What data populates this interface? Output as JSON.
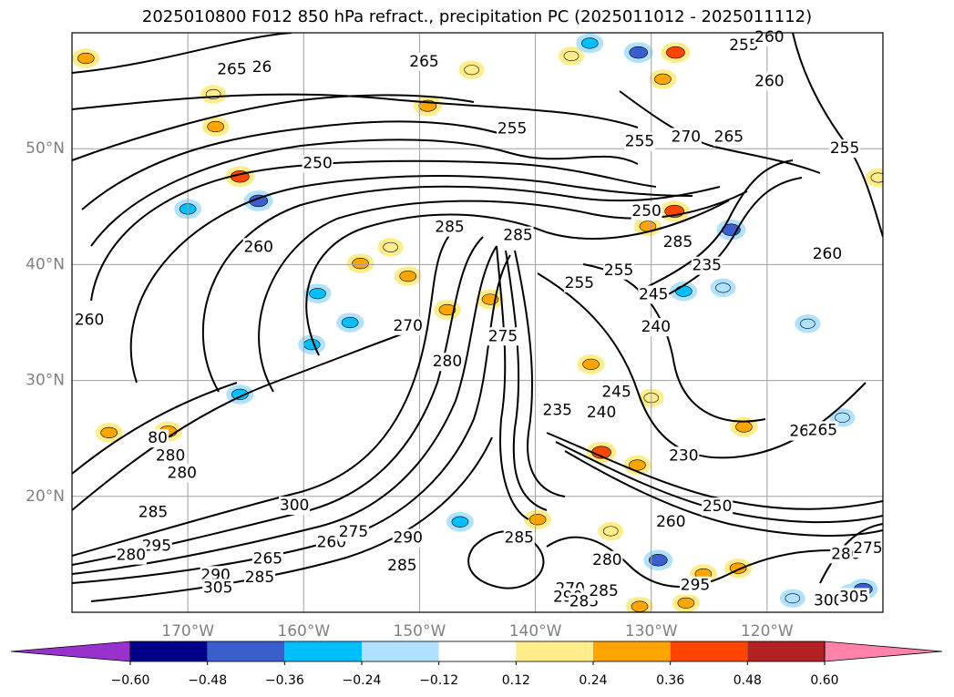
{
  "title": "2025010800 F012 850 hPa refract., precipitation PC (2025011012 - 2025011112)",
  "chart_data": {
    "type": "heatmap",
    "title": "2025010800 F012 850 hPa refract., precipitation PC (2025011012 - 2025011112)",
    "xlabel": "",
    "ylabel": "",
    "xlim": [
      -180,
      -110
    ],
    "ylim": [
      10,
      60
    ],
    "lon_ticks": [
      {
        "value": -170,
        "label": "170°W"
      },
      {
        "value": -160,
        "label": "160°W"
      },
      {
        "value": -150,
        "label": "150°W"
      },
      {
        "value": -140,
        "label": "140°W"
      },
      {
        "value": -130,
        "label": "130°W"
      },
      {
        "value": -120,
        "label": "120°W"
      }
    ],
    "lat_ticks": [
      {
        "value": 20,
        "label": "20°N"
      },
      {
        "value": 30,
        "label": "30°N"
      },
      {
        "value": 40,
        "label": "40°N"
      },
      {
        "value": 50,
        "label": "50°N"
      }
    ],
    "grid": true,
    "colorbar": {
      "orientation": "horizontal",
      "extend": "both",
      "bounds": [
        -0.72,
        -0.6,
        -0.48,
        -0.36,
        -0.24,
        -0.12,
        0.12,
        0.24,
        0.36,
        0.48,
        0.6,
        0.72
      ],
      "tick_values": [
        -0.6,
        -0.48,
        -0.36,
        -0.24,
        -0.12,
        0.12,
        0.24,
        0.36,
        0.48,
        0.6
      ],
      "tick_labels": [
        "−0.60",
        "−0.48",
        "−0.36",
        "−0.24",
        "−0.12",
        "0.12",
        "0.24",
        "0.36",
        "0.48",
        "0.60"
      ],
      "colors": [
        "#9932cc",
        "#00008b",
        "#3a5fcd",
        "#00bfff",
        "#b0e2ff",
        "#ffffff",
        "#ffec8b",
        "#ffa500",
        "#ff4500",
        "#b22222",
        "#ff82ab"
      ]
    },
    "contour_labels": [
      {
        "lon": -166.2,
        "lat": 56.8,
        "text": "265"
      },
      {
        "lon": -163.6,
        "lat": 57.0,
        "text": "26"
      },
      {
        "lon": -149.6,
        "lat": 57.5,
        "text": "265"
      },
      {
        "lon": -142.0,
        "lat": 51.7,
        "text": "255"
      },
      {
        "lon": -158.8,
        "lat": 48.7,
        "text": "250"
      },
      {
        "lon": -163.9,
        "lat": 41.5,
        "text": "260"
      },
      {
        "lon": -178.5,
        "lat": 35.2,
        "text": "260"
      },
      {
        "lon": -131.0,
        "lat": 50.6,
        "text": "255"
      },
      {
        "lon": -122.0,
        "lat": 58.9,
        "text": "255"
      },
      {
        "lon": -119.8,
        "lat": 59.6,
        "text": "260"
      },
      {
        "lon": -119.8,
        "lat": 55.8,
        "text": "260"
      },
      {
        "lon": -123.3,
        "lat": 51.0,
        "text": "265"
      },
      {
        "lon": -127.0,
        "lat": 51.0,
        "text": "270"
      },
      {
        "lon": -113.3,
        "lat": 50.0,
        "text": "255"
      },
      {
        "lon": -114.8,
        "lat": 40.9,
        "text": "260"
      },
      {
        "lon": -130.4,
        "lat": 44.6,
        "text": "250"
      },
      {
        "lon": -147.4,
        "lat": 43.2,
        "text": "285"
      },
      {
        "lon": -141.5,
        "lat": 42.5,
        "text": "285"
      },
      {
        "lon": -127.7,
        "lat": 41.9,
        "text": "285"
      },
      {
        "lon": -132.8,
        "lat": 39.5,
        "text": "255"
      },
      {
        "lon": -136.2,
        "lat": 38.4,
        "text": "255"
      },
      {
        "lon": -129.8,
        "lat": 37.4,
        "text": "245"
      },
      {
        "lon": -125.2,
        "lat": 39.9,
        "text": "235"
      },
      {
        "lon": -129.6,
        "lat": 34.6,
        "text": "240"
      },
      {
        "lon": -151.0,
        "lat": 34.7,
        "text": "270"
      },
      {
        "lon": -147.6,
        "lat": 31.6,
        "text": "280"
      },
      {
        "lon": -142.8,
        "lat": 33.8,
        "text": "275"
      },
      {
        "lon": -133.0,
        "lat": 29.0,
        "text": "245"
      },
      {
        "lon": -138.1,
        "lat": 27.4,
        "text": "235"
      },
      {
        "lon": -134.3,
        "lat": 27.2,
        "text": "240"
      },
      {
        "lon": -127.2,
        "lat": 23.5,
        "text": "230"
      },
      {
        "lon": -171.5,
        "lat": 23.5,
        "text": "280"
      },
      {
        "lon": -172.6,
        "lat": 25.0,
        "text": "80"
      },
      {
        "lon": -170.5,
        "lat": 22.0,
        "text": "280"
      },
      {
        "lon": -173.0,
        "lat": 18.6,
        "text": "285"
      },
      {
        "lon": -160.8,
        "lat": 19.2,
        "text": "300"
      },
      {
        "lon": -172.7,
        "lat": 15.7,
        "text": "295"
      },
      {
        "lon": -174.9,
        "lat": 14.9,
        "text": "280"
      },
      {
        "lon": -163.1,
        "lat": 14.6,
        "text": "265"
      },
      {
        "lon": -157.6,
        "lat": 16.0,
        "text": "260"
      },
      {
        "lon": -155.7,
        "lat": 16.9,
        "text": "275"
      },
      {
        "lon": -151.0,
        "lat": 16.4,
        "text": "290"
      },
      {
        "lon": -151.5,
        "lat": 14.0,
        "text": "285"
      },
      {
        "lon": -167.6,
        "lat": 13.2,
        "text": "290"
      },
      {
        "lon": -167.4,
        "lat": 12.1,
        "text": "305"
      },
      {
        "lon": -163.8,
        "lat": 13.0,
        "text": "285"
      },
      {
        "lon": -141.4,
        "lat": 16.4,
        "text": "285"
      },
      {
        "lon": -137.0,
        "lat": 12.0,
        "text": "270"
      },
      {
        "lon": -133.8,
        "lat": 14.5,
        "text": "280"
      },
      {
        "lon": -137.2,
        "lat": 11.3,
        "text": "290"
      },
      {
        "lon": -135.8,
        "lat": 10.9,
        "text": "285"
      },
      {
        "lon": -134.1,
        "lat": 11.8,
        "text": "285"
      },
      {
        "lon": -128.3,
        "lat": 17.8,
        "text": "260"
      },
      {
        "lon": -124.3,
        "lat": 19.1,
        "text": "250"
      },
      {
        "lon": -126.2,
        "lat": 12.3,
        "text": "295"
      },
      {
        "lon": -116.8,
        "lat": 25.6,
        "text": "260"
      },
      {
        "lon": -115.2,
        "lat": 25.7,
        "text": "265"
      },
      {
        "lon": -113.2,
        "lat": 15.0,
        "text": "280"
      },
      {
        "lon": -111.3,
        "lat": 15.5,
        "text": "275"
      },
      {
        "lon": -114.7,
        "lat": 11.0,
        "text": "300"
      },
      {
        "lon": -112.5,
        "lat": 11.3,
        "text": "305"
      }
    ],
    "precip_patches": [
      {
        "lon": -178.8,
        "lat": 57.8,
        "value": 0.3
      },
      {
        "lon": -167.8,
        "lat": 54.7,
        "value": 0.2
      },
      {
        "lon": -167.6,
        "lat": 51.9,
        "value": 0.3
      },
      {
        "lon": -165.5,
        "lat": 47.6,
        "value": 0.4
      },
      {
        "lon": -163.9,
        "lat": 45.5,
        "value": -0.4
      },
      {
        "lon": -170.0,
        "lat": 44.8,
        "value": -0.3
      },
      {
        "lon": -149.3,
        "lat": 53.7,
        "value": 0.35
      },
      {
        "lon": -145.5,
        "lat": 56.8,
        "value": 0.2
      },
      {
        "lon": -136.9,
        "lat": 58.0,
        "value": 0.2
      },
      {
        "lon": -135.3,
        "lat": 59.1,
        "value": -0.3
      },
      {
        "lon": -131.1,
        "lat": 58.3,
        "value": -0.4
      },
      {
        "lon": -127.9,
        "lat": 58.3,
        "value": 0.4
      },
      {
        "lon": -129.0,
        "lat": 56.0,
        "value": 0.3
      },
      {
        "lon": -128.0,
        "lat": 44.6,
        "value": 0.45
      },
      {
        "lon": -130.3,
        "lat": 43.3,
        "value": 0.3
      },
      {
        "lon": -123.1,
        "lat": 43.0,
        "value": -0.4
      },
      {
        "lon": -155.1,
        "lat": 40.1,
        "value": 0.3
      },
      {
        "lon": -151.0,
        "lat": 39.0,
        "value": 0.3
      },
      {
        "lon": -158.8,
        "lat": 37.5,
        "value": -0.3
      },
      {
        "lon": -156.0,
        "lat": 35.0,
        "value": -0.3
      },
      {
        "lon": -159.3,
        "lat": 33.1,
        "value": -0.3
      },
      {
        "lon": -152.5,
        "lat": 41.5,
        "value": 0.2
      },
      {
        "lon": -147.6,
        "lat": 36.1,
        "value": 0.3
      },
      {
        "lon": -143.9,
        "lat": 37.0,
        "value": 0.3
      },
      {
        "lon": -135.2,
        "lat": 31.4,
        "value": 0.3
      },
      {
        "lon": -134.3,
        "lat": 23.8,
        "value": 0.45
      },
      {
        "lon": -131.2,
        "lat": 22.7,
        "value": 0.3
      },
      {
        "lon": -127.2,
        "lat": 37.7,
        "value": -0.3
      },
      {
        "lon": -123.8,
        "lat": 38.0,
        "value": -0.2
      },
      {
        "lon": -130.0,
        "lat": 28.5,
        "value": 0.2
      },
      {
        "lon": -176.8,
        "lat": 25.5,
        "value": 0.3
      },
      {
        "lon": -171.7,
        "lat": 25.6,
        "value": 0.35
      },
      {
        "lon": -165.5,
        "lat": 28.8,
        "value": -0.3
      },
      {
        "lon": -146.5,
        "lat": 17.8,
        "value": -0.3
      },
      {
        "lon": -139.8,
        "lat": 18.0,
        "value": 0.3
      },
      {
        "lon": -133.5,
        "lat": 17.0,
        "value": 0.2
      },
      {
        "lon": -129.4,
        "lat": 14.5,
        "value": -0.4
      },
      {
        "lon": -125.5,
        "lat": 13.3,
        "value": 0.3
      },
      {
        "lon": -122.5,
        "lat": 13.8,
        "value": 0.3
      },
      {
        "lon": -117.8,
        "lat": 11.2,
        "value": -0.2
      },
      {
        "lon": -112.6,
        "lat": 11.5,
        "value": -0.55
      },
      {
        "lon": -111.7,
        "lat": 12.0,
        "value": -0.4
      },
      {
        "lon": -131.0,
        "lat": 10.5,
        "value": 0.3
      },
      {
        "lon": -127.0,
        "lat": 10.8,
        "value": 0.3
      },
      {
        "lon": -122.0,
        "lat": 26.0,
        "value": 0.3
      },
      {
        "lon": -113.5,
        "lat": 26.8,
        "value": -0.2
      },
      {
        "lon": -116.5,
        "lat": 34.9,
        "value": -0.2
      },
      {
        "lon": -110.4,
        "lat": 47.5,
        "value": 0.2
      }
    ]
  }
}
